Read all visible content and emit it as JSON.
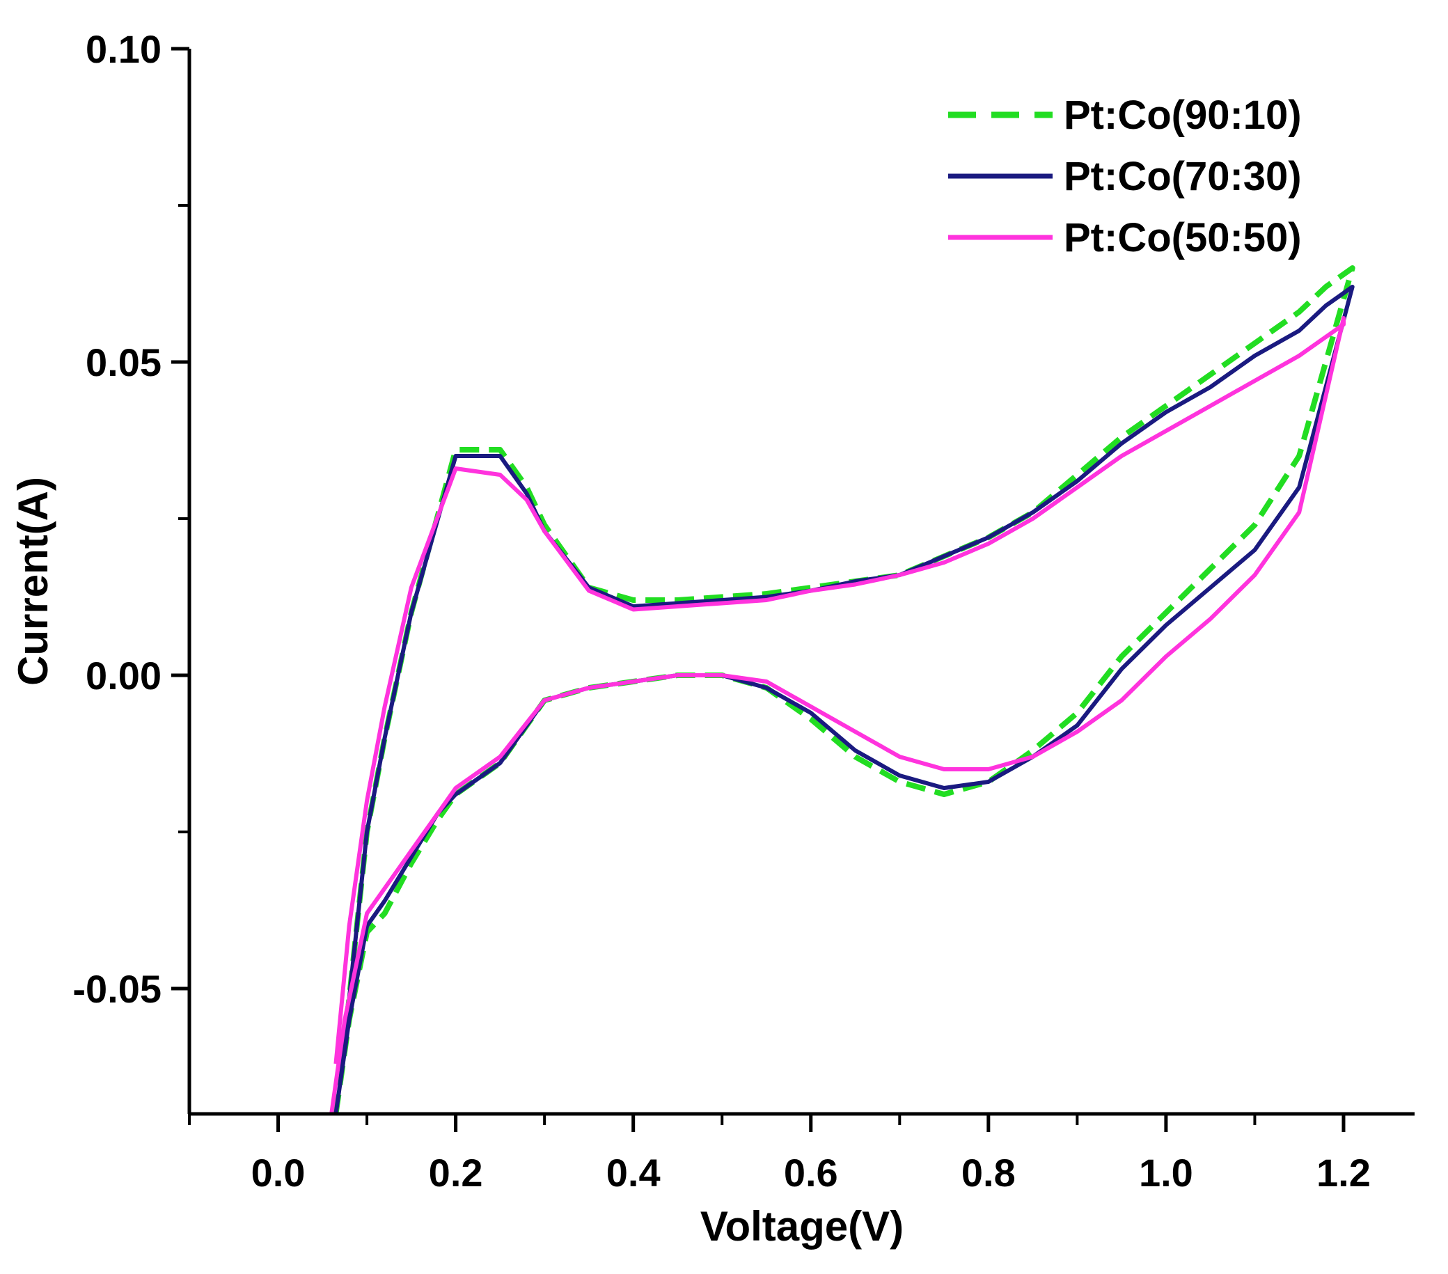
{
  "chart_data": {
    "type": "line",
    "title": "",
    "xlabel": "Voltage(V)",
    "ylabel": "Current(A)",
    "xlim": [
      -0.1,
      1.28
    ],
    "ylim": [
      -0.07,
      0.1
    ],
    "xticks": [
      0.0,
      0.2,
      0.4,
      0.6,
      0.8,
      1.0,
      1.2
    ],
    "xtick_labels": [
      "0.0",
      "0.2",
      "0.4",
      "0.6",
      "0.8",
      "1.0",
      "1.2"
    ],
    "yticks": [
      -0.05,
      0.0,
      0.05,
      0.1
    ],
    "ytick_labels": [
      "-0.05",
      "0.00",
      "0.05",
      "0.10"
    ],
    "grid": false,
    "legend_position": "top-right",
    "series": [
      {
        "name": "Pt:Co(90:10)",
        "color": "#22dd22",
        "dash": "dashed",
        "x": [
          0.065,
          0.08,
          0.1,
          0.12,
          0.15,
          0.18,
          0.2,
          0.25,
          0.3,
          0.35,
          0.4,
          0.45,
          0.5,
          0.55,
          0.6,
          0.65,
          0.7,
          0.75,
          0.8,
          0.85,
          0.9,
          0.95,
          1.0,
          1.05,
          1.1,
          1.15,
          1.21,
          1.2,
          1.18,
          1.15,
          1.1,
          1.05,
          1.0,
          0.95,
          0.9,
          0.85,
          0.8,
          0.75,
          0.7,
          0.65,
          0.6,
          0.55,
          0.5,
          0.45,
          0.4,
          0.35,
          0.3,
          0.28,
          0.25,
          0.2,
          0.15,
          0.12,
          0.1,
          0.085,
          0.07
        ],
        "y": [
          -0.07,
          -0.055,
          -0.041,
          -0.038,
          -0.03,
          -0.023,
          -0.019,
          -0.014,
          -0.004,
          -0.002,
          -0.001,
          0.0,
          0.0,
          -0.002,
          -0.007,
          -0.013,
          -0.017,
          -0.019,
          -0.017,
          -0.012,
          -0.006,
          0.003,
          0.01,
          0.017,
          0.024,
          0.035,
          0.065,
          0.064,
          0.062,
          0.058,
          0.053,
          0.048,
          0.043,
          0.038,
          0.032,
          0.026,
          0.022,
          0.019,
          0.016,
          0.015,
          0.014,
          0.013,
          0.0125,
          0.012,
          0.012,
          0.014,
          0.024,
          0.03,
          0.036,
          0.036,
          0.01,
          -0.01,
          -0.025,
          -0.045,
          -0.065
        ]
      },
      {
        "name": "Pt:Co(70:30)",
        "color": "#1a1a80",
        "dash": "solid",
        "x": [
          0.065,
          0.08,
          0.1,
          0.12,
          0.15,
          0.18,
          0.2,
          0.25,
          0.3,
          0.35,
          0.4,
          0.45,
          0.5,
          0.55,
          0.6,
          0.65,
          0.7,
          0.75,
          0.8,
          0.85,
          0.9,
          0.95,
          1.0,
          1.05,
          1.1,
          1.15,
          1.21,
          1.2,
          1.18,
          1.15,
          1.1,
          1.05,
          1.0,
          0.95,
          0.9,
          0.85,
          0.8,
          0.75,
          0.7,
          0.65,
          0.6,
          0.55,
          0.5,
          0.45,
          0.4,
          0.35,
          0.3,
          0.28,
          0.25,
          0.2,
          0.15,
          0.12,
          0.1,
          0.085,
          0.07
        ],
        "y": [
          -0.07,
          -0.055,
          -0.04,
          -0.036,
          -0.029,
          -0.022,
          -0.019,
          -0.014,
          -0.004,
          -0.002,
          -0.001,
          0.0,
          0.0,
          -0.002,
          -0.006,
          -0.012,
          -0.016,
          -0.018,
          -0.017,
          -0.013,
          -0.008,
          0.001,
          0.008,
          0.014,
          0.02,
          0.03,
          0.062,
          0.061,
          0.059,
          0.055,
          0.051,
          0.046,
          0.042,
          0.037,
          0.031,
          0.026,
          0.022,
          0.019,
          0.016,
          0.015,
          0.0135,
          0.0125,
          0.012,
          0.0115,
          0.011,
          0.014,
          0.023,
          0.029,
          0.035,
          0.035,
          0.01,
          -0.01,
          -0.025,
          -0.045,
          -0.065
        ]
      },
      {
        "name": "Pt:Co(50:50)",
        "color": "#ff33dd",
        "dash": "solid",
        "x": [
          0.06,
          0.075,
          0.1,
          0.12,
          0.15,
          0.18,
          0.2,
          0.25,
          0.3,
          0.35,
          0.4,
          0.45,
          0.5,
          0.55,
          0.6,
          0.65,
          0.7,
          0.75,
          0.8,
          0.85,
          0.9,
          0.95,
          1.0,
          1.05,
          1.1,
          1.15,
          1.2,
          1.2,
          1.18,
          1.15,
          1.1,
          1.05,
          1.0,
          0.95,
          0.9,
          0.85,
          0.8,
          0.75,
          0.7,
          0.65,
          0.6,
          0.55,
          0.5,
          0.45,
          0.4,
          0.35,
          0.3,
          0.28,
          0.25,
          0.2,
          0.15,
          0.12,
          0.1,
          0.08,
          0.065
        ],
        "y": [
          -0.07,
          -0.055,
          -0.038,
          -0.034,
          -0.028,
          -0.022,
          -0.018,
          -0.013,
          -0.004,
          -0.002,
          -0.001,
          0.0,
          0.0,
          -0.001,
          -0.005,
          -0.009,
          -0.013,
          -0.015,
          -0.015,
          -0.013,
          -0.009,
          -0.004,
          0.003,
          0.009,
          0.016,
          0.026,
          0.057,
          0.056,
          0.054,
          0.051,
          0.047,
          0.043,
          0.039,
          0.035,
          0.03,
          0.025,
          0.021,
          0.018,
          0.016,
          0.0145,
          0.0135,
          0.012,
          0.0115,
          0.011,
          0.0105,
          0.0135,
          0.023,
          0.028,
          0.032,
          0.033,
          0.014,
          -0.005,
          -0.02,
          -0.04,
          -0.062
        ]
      }
    ]
  }
}
